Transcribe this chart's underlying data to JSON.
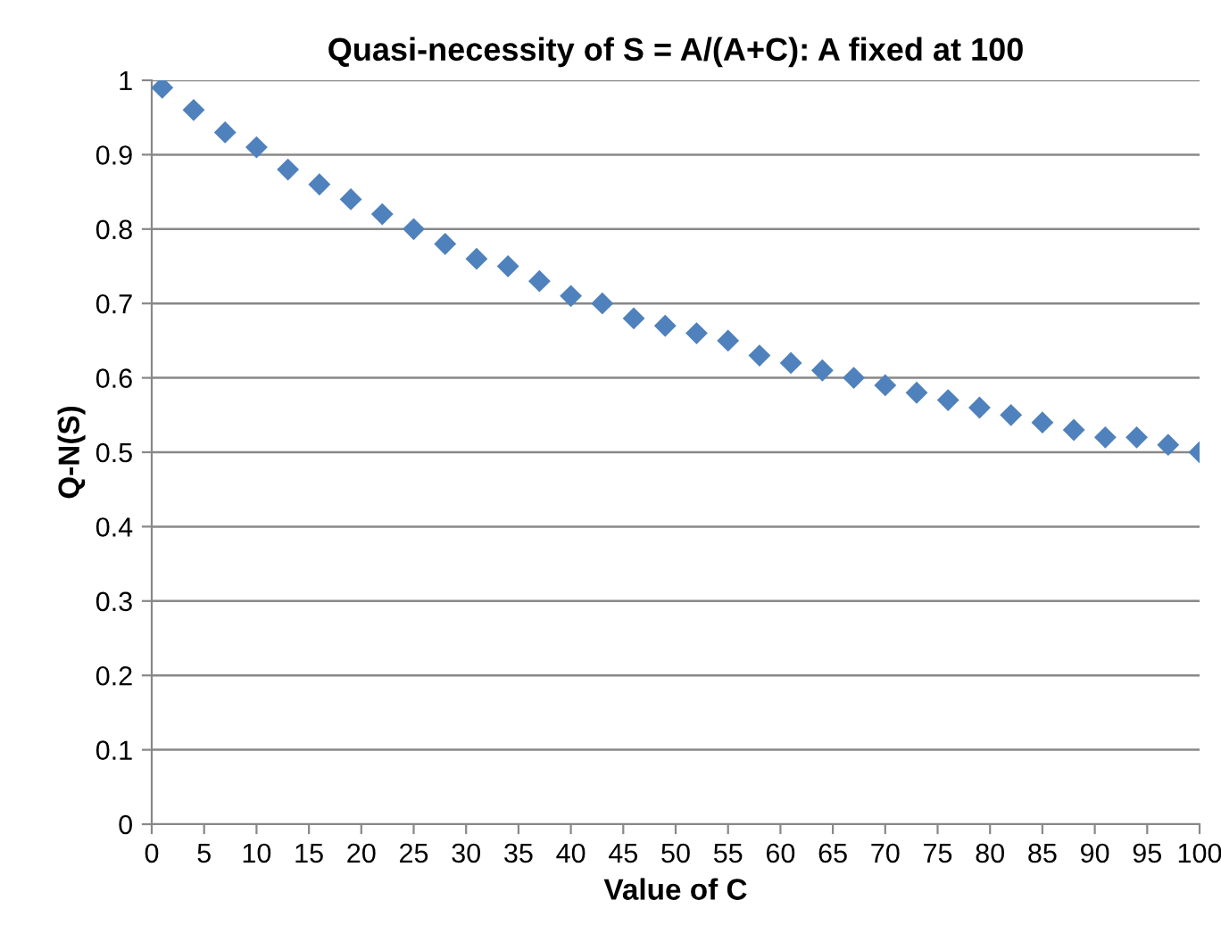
{
  "chart_data": {
    "type": "scatter",
    "title": "Quasi-necessity of S = A/(A+C): A fixed at 100",
    "xlabel": "Value of C",
    "ylabel": "Q-N(S)",
    "x": [
      1,
      4,
      7,
      10,
      13,
      16,
      19,
      22,
      25,
      28,
      31,
      34,
      37,
      40,
      43,
      46,
      49,
      52,
      55,
      58,
      61,
      64,
      67,
      70,
      73,
      76,
      79,
      82,
      85,
      88,
      91,
      94,
      97,
      100
    ],
    "series": [
      {
        "color": "#4f81bd",
        "values": [
          0.99,
          0.96,
          0.93,
          0.91,
          0.88,
          0.86,
          0.84,
          0.82,
          0.8,
          0.78,
          0.76,
          0.75,
          0.73,
          0.71,
          0.7,
          0.68,
          0.67,
          0.66,
          0.65,
          0.63,
          0.62,
          0.61,
          0.6,
          0.59,
          0.58,
          0.57,
          0.56,
          0.55,
          0.54,
          0.53,
          0.52,
          0.52,
          0.51,
          0.5
        ]
      }
    ],
    "xlim": [
      0,
      100
    ],
    "xticks": [
      0,
      5,
      10,
      15,
      20,
      25,
      30,
      35,
      40,
      45,
      50,
      55,
      60,
      65,
      70,
      75,
      80,
      85,
      90,
      95,
      100
    ],
    "ylim": [
      0,
      1
    ],
    "yticks": [
      0,
      0.1,
      0.2,
      0.3,
      0.4,
      0.5,
      0.6,
      0.7,
      0.8,
      0.9,
      1
    ],
    "grid": "y",
    "marker": "diamond",
    "legend": false
  }
}
